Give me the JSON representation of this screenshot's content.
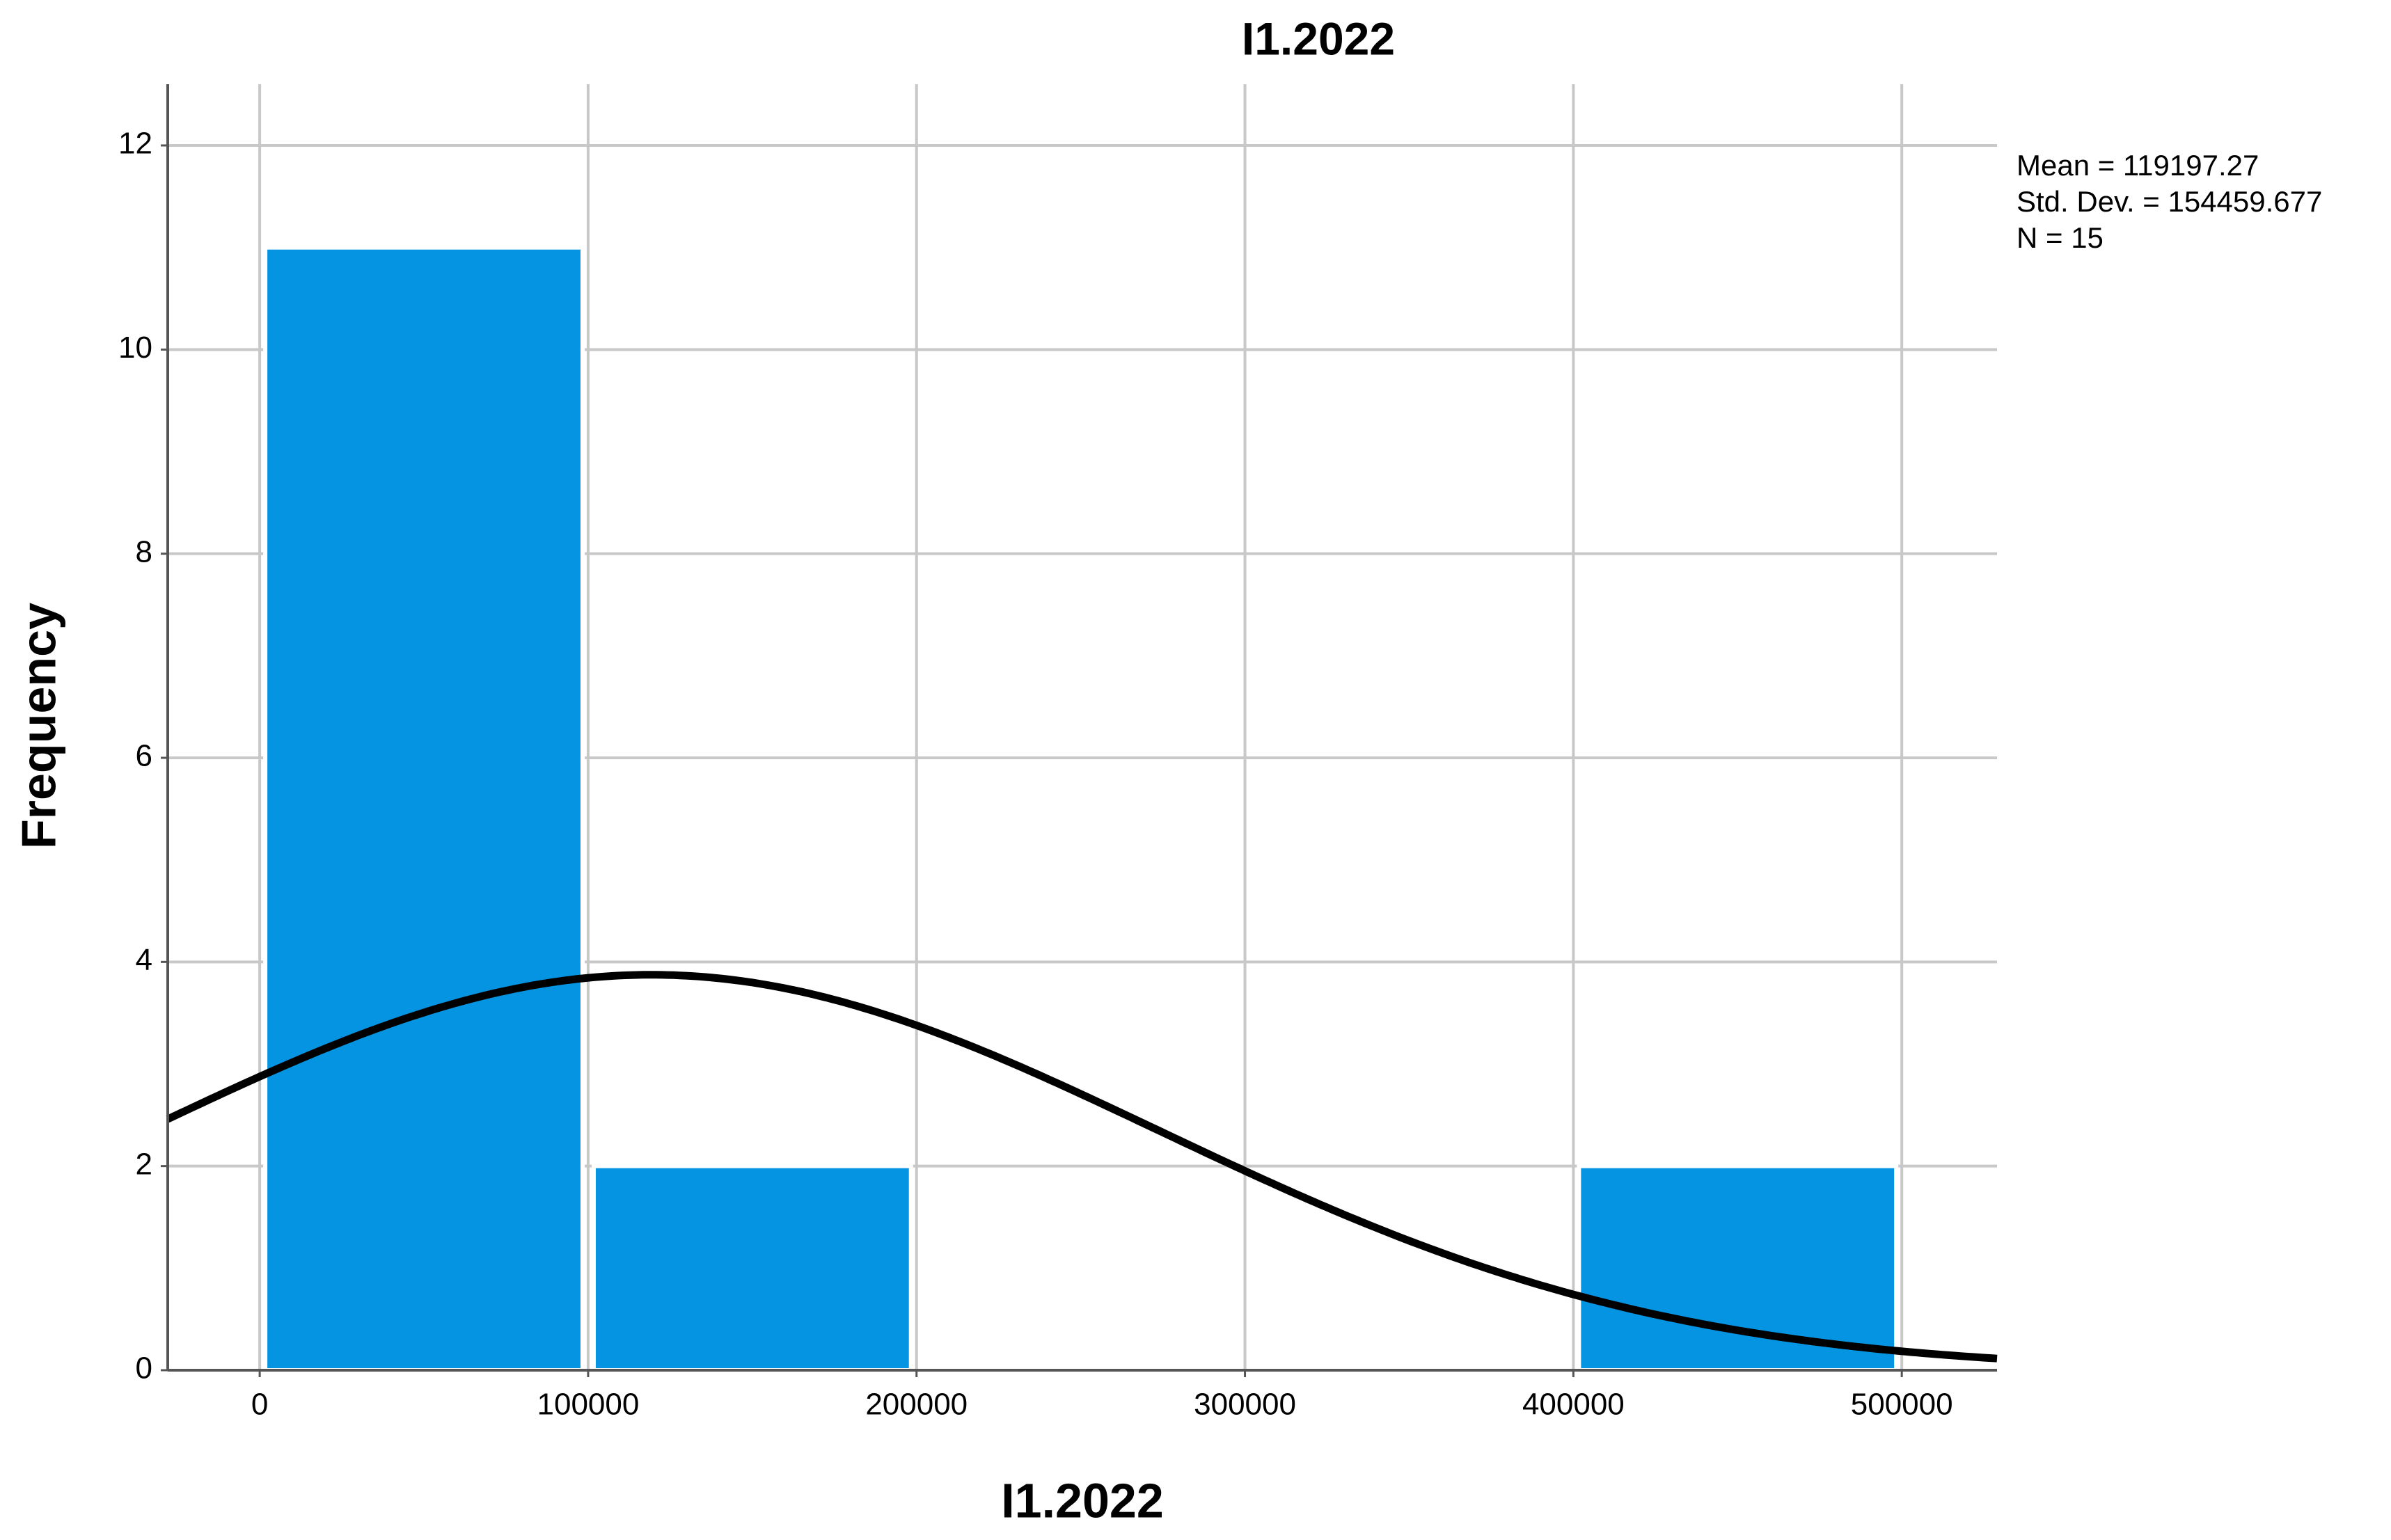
{
  "chart_data": {
    "type": "histogram",
    "title": "I1.2022",
    "x_label": "I1.2022",
    "y_label": "Frequency",
    "bins": [
      0,
      100000,
      200000,
      300000,
      400000,
      500000
    ],
    "values": [
      11,
      2,
      0,
      0,
      2
    ],
    "color": "#0494e2",
    "curve_color": "#000000",
    "xlim": [
      -28000,
      529000
    ],
    "ylim": [
      0,
      12.6
    ],
    "xticks": [
      0,
      100000,
      200000,
      300000,
      400000,
      500000
    ],
    "yticks": [
      0,
      2,
      4,
      6,
      8,
      10,
      12
    ],
    "grid": true,
    "stats": [
      {
        "value": 119197.27,
        "label": "Mean = 119197.27"
      },
      {
        "value": 154459.677,
        "label": "Std. Dev. = 154459.677"
      },
      {
        "value": 15,
        "label": "N = 15"
      }
    ]
  }
}
